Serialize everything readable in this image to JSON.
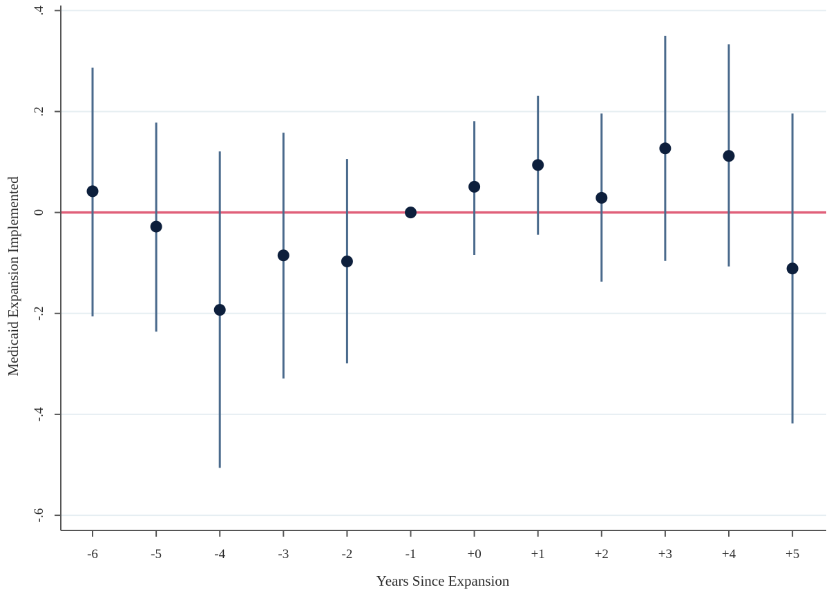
{
  "chart_data": {
    "type": "scatter",
    "title": "",
    "xlabel": "Years Since Expansion",
    "ylabel": "Medicaid Expansion Implemented",
    "categories": [
      "-6",
      "-5",
      "-4",
      "-3",
      "-2",
      "-1",
      "+0",
      "+1",
      "+2",
      "+3",
      "+4",
      "+5"
    ],
    "yticks": [
      -0.6,
      -0.4,
      -0.2,
      0,
      0.2,
      0.4
    ],
    "ytick_labels": [
      "-.6",
      "-.4",
      "-.2",
      "0",
      ".2",
      ".4"
    ],
    "ylim": [
      -0.63,
      0.41
    ],
    "grid": "horizontal",
    "reference_line": 0,
    "series": [
      {
        "estimates": [
          0.042,
          -0.028,
          -0.193,
          -0.085,
          -0.097,
          0.0,
          0.051,
          0.094,
          0.029,
          0.127,
          0.112,
          -0.111
        ],
        "ci_lower": [
          -0.206,
          -0.236,
          -0.506,
          -0.329,
          -0.299,
          0.0,
          -0.084,
          -0.044,
          -0.137,
          -0.096,
          -0.107,
          -0.418
        ],
        "ci_upper": [
          0.287,
          0.178,
          0.121,
          0.158,
          0.106,
          0.0,
          0.181,
          0.231,
          0.196,
          0.35,
          0.333,
          0.196
        ]
      }
    ],
    "colors": {
      "point": "#0d1f3c",
      "ci": "#4a6a8c",
      "reference_line": "#e0607a",
      "grid": "#e6eef2",
      "axis": "#555555"
    }
  }
}
